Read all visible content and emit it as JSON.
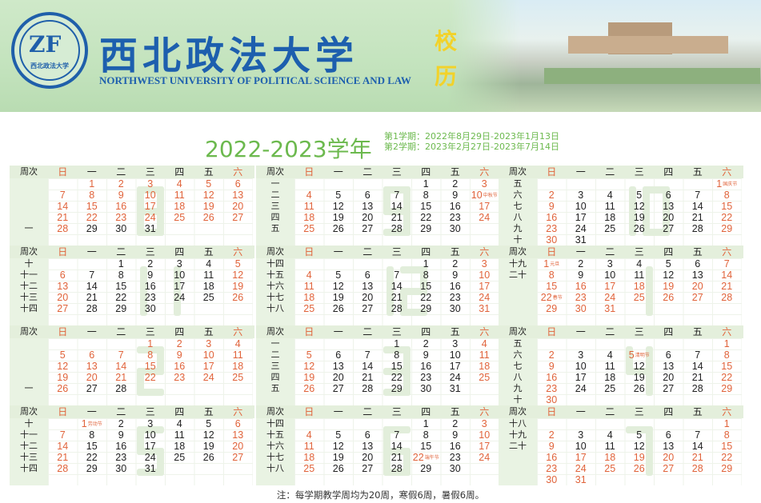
{
  "header": {
    "university_cn": "西北政法大学",
    "university_en": "NORTHWEST UNIVERSITY OF POLITICAL SCIENCE AND LAW",
    "calendar_label": [
      "校",
      "历"
    ],
    "logo_text": "西北政法大学"
  },
  "academic_year": "2022-2023学年",
  "terms": [
    "第1学期：2022年8月29日-2023年1月13日",
    "第2学期：2023年2月27日-2023年7月14日"
  ],
  "colors": {
    "holiday": "#e0633a",
    "year": "#6cb94e",
    "brand": "#1d5fae"
  },
  "weekday_header": {
    "week": "周次",
    "days": [
      "日",
      "一",
      "二",
      "三",
      "四",
      "五",
      "六"
    ]
  },
  "months": [
    {
      "month": "8",
      "year": 2022,
      "first_weekday": 1,
      "days": 31,
      "vacation": [
        1,
        28
      ],
      "weeks": [
        "",
        "",
        "",
        "",
        "一",
        ""
      ],
      "notes": {}
    },
    {
      "month": "9",
      "year": 2022,
      "first_weekday": 4,
      "days": 30,
      "vacation": null,
      "weeks": [
        "一",
        "二",
        "三",
        "四",
        "五",
        ""
      ],
      "notes": {
        "10": "中秋节"
      }
    },
    {
      "month": "10",
      "year": 2022,
      "first_weekday": 6,
      "days": 31,
      "vacation": null,
      "weeks": [
        "五",
        "六",
        "七",
        "八",
        "九",
        "十"
      ],
      "notes": {
        "1": "国庆节"
      }
    },
    {
      "month": "11",
      "year": 2022,
      "first_weekday": 2,
      "days": 30,
      "vacation": null,
      "weeks": [
        "十",
        "十一",
        "十二",
        "十三",
        "十四",
        ""
      ],
      "notes": {}
    },
    {
      "month": "12",
      "year": 2022,
      "first_weekday": 4,
      "days": 31,
      "vacation": null,
      "weeks": [
        "十四",
        "十五",
        "十六",
        "十七",
        "十八",
        ""
      ],
      "notes": {}
    },
    {
      "month": "1",
      "year": 2023,
      "first_weekday": 0,
      "days": 31,
      "vacation": [
        15,
        31
      ],
      "weeks": [
        "十九",
        "二十",
        "",
        "",
        "",
        ""
      ],
      "notes": {
        "1": "元旦",
        "22": "春节"
      }
    },
    {
      "month": "2",
      "year": 2023,
      "first_weekday": 3,
      "days": 28,
      "vacation": [
        1,
        26
      ],
      "weeks": [
        "",
        "",
        "",
        "",
        "一",
        ""
      ],
      "notes": {}
    },
    {
      "month": "3",
      "year": 2023,
      "first_weekday": 3,
      "days": 31,
      "vacation": null,
      "weeks": [
        "一",
        "二",
        "三",
        "四",
        "五",
        ""
      ],
      "notes": {}
    },
    {
      "month": "4",
      "year": 2023,
      "first_weekday": 6,
      "days": 30,
      "vacation": null,
      "weeks": [
        "五",
        "六",
        "七",
        "八",
        "九",
        "十"
      ],
      "notes": {
        "5": "清明节"
      }
    },
    {
      "month": "5",
      "year": 2023,
      "first_weekday": 1,
      "days": 31,
      "vacation": null,
      "weeks": [
        "十",
        "十一",
        "十二",
        "十三",
        "十四",
        ""
      ],
      "notes": {
        "1": "劳动节"
      }
    },
    {
      "month": "6",
      "year": 2023,
      "first_weekday": 4,
      "days": 30,
      "vacation": null,
      "weeks": [
        "十四",
        "十五",
        "十六",
        "十七",
        "十八",
        ""
      ],
      "notes": {
        "22": "端午节"
      }
    },
    {
      "month": "7",
      "year": 2023,
      "first_weekday": 6,
      "days": 31,
      "vacation": [
        17,
        31
      ],
      "weeks": [
        "十八",
        "十九",
        "二十",
        "",
        "",
        ""
      ],
      "notes": {}
    }
  ],
  "footer": "注：每学期教学周均为20周，寒假6周，暑假6周。"
}
